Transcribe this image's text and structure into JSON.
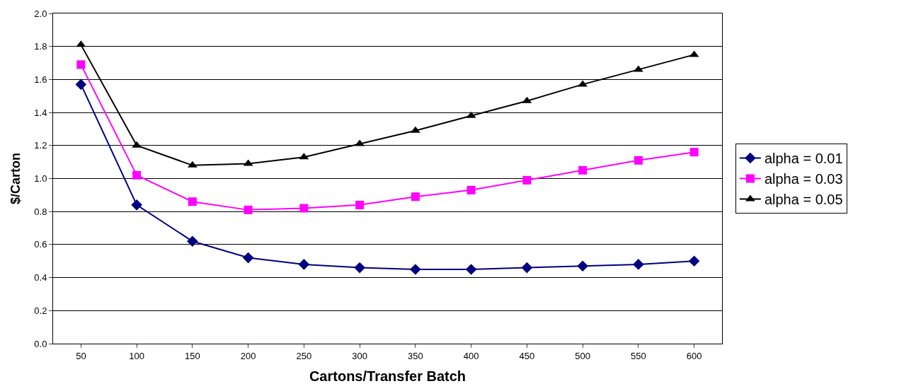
{
  "chart_data": {
    "type": "line",
    "xlabel": "Cartons/Transfer Batch",
    "ylabel": "$/Carton",
    "categories": [
      "50",
      "100",
      "150",
      "200",
      "250",
      "300",
      "350",
      "400",
      "450",
      "500",
      "550",
      "600"
    ],
    "series": [
      {
        "name": "alpha = 0.01",
        "color": "#000080",
        "marker": "diamond",
        "values": [
          1.57,
          0.84,
          0.62,
          0.52,
          0.48,
          0.46,
          0.45,
          0.45,
          0.46,
          0.47,
          0.48,
          0.5
        ]
      },
      {
        "name": "alpha = 0.03",
        "color": "#ff00ff",
        "marker": "square",
        "values": [
          1.69,
          1.02,
          0.86,
          0.81,
          0.82,
          0.84,
          0.89,
          0.93,
          0.99,
          1.05,
          1.11,
          1.16
        ]
      },
      {
        "name": "alpha = 0.05",
        "color": "#000000",
        "marker": "triangle",
        "values": [
          1.81,
          1.2,
          1.08,
          1.09,
          1.13,
          1.21,
          1.29,
          1.38,
          1.47,
          1.57,
          1.66,
          1.75
        ]
      }
    ],
    "ylim": [
      0,
      2.0
    ],
    "yticks": [
      {
        "value": 0,
        "label": "0.0"
      },
      {
        "value": 0.2,
        "label": "0.2"
      },
      {
        "value": 0.4,
        "label": "0.4"
      },
      {
        "value": 0.6,
        "label": "0.6"
      },
      {
        "value": 0.8,
        "label": "0.8"
      },
      {
        "value": 1.0,
        "label": "1.0"
      },
      {
        "value": 1.2,
        "label": "1.2"
      },
      {
        "value": 1.4,
        "label": "1.4"
      },
      {
        "value": 1.6,
        "label": "1.6"
      },
      {
        "value": 1.8,
        "label": "1.8"
      },
      {
        "value": 2.0,
        "label": "2.0"
      }
    ],
    "grid": "y",
    "legend": "right",
    "line_style": "solid"
  }
}
